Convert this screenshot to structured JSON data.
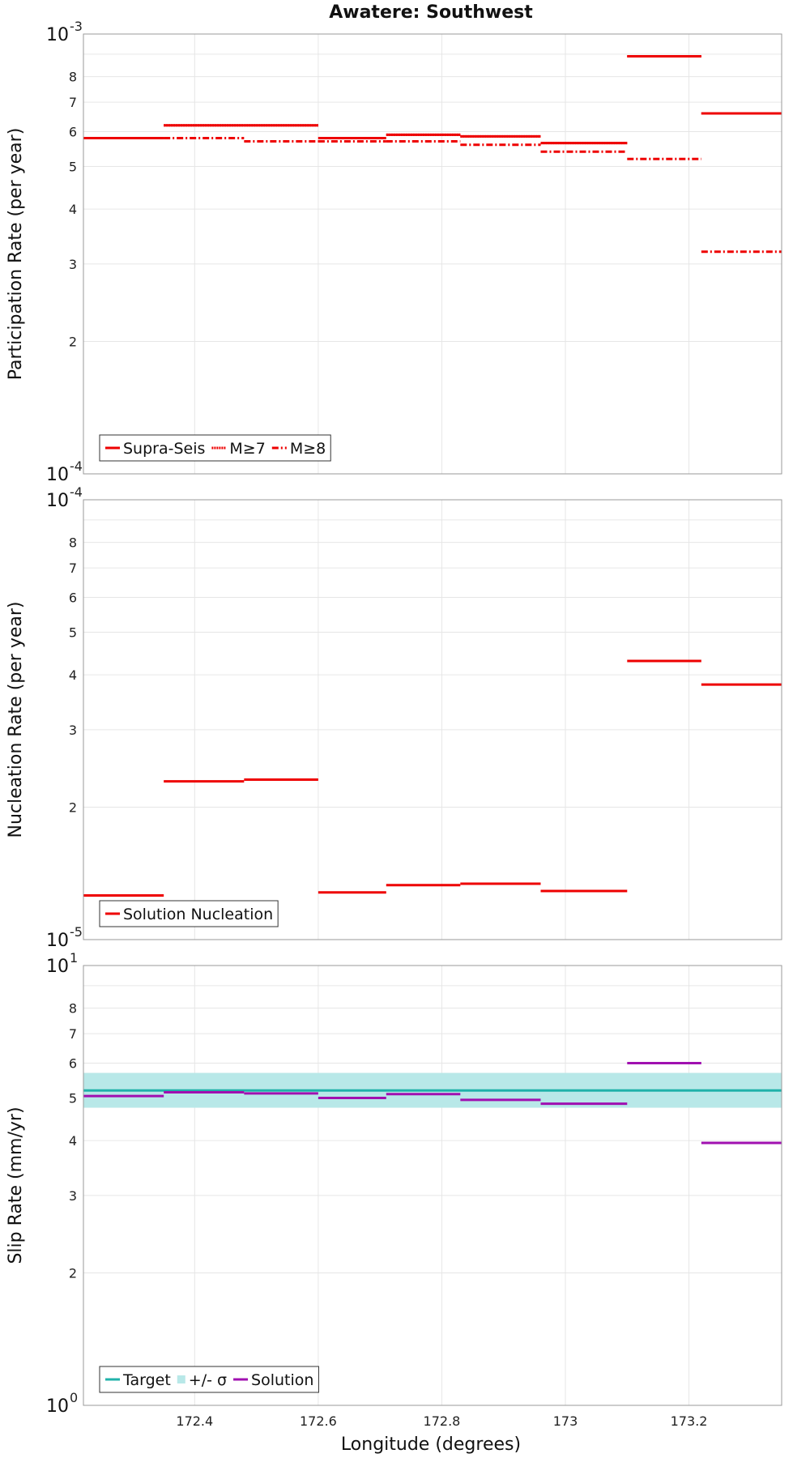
{
  "chart_data": [
    {
      "type": "line",
      "panel": "participation",
      "title": "Awatere: Southwest",
      "ylabel": "Participation Rate (per year)",
      "yscale": "log",
      "ylim": [
        0.0001,
        0.001
      ],
      "xlim": [
        172.22,
        173.35
      ],
      "decade_labels": [
        {
          "base": "10",
          "exp": "-3",
          "value": 0.001
        },
        {
          "base": "10",
          "exp": "-4",
          "value": 0.0001
        }
      ],
      "ytick_labels": [
        {
          "label": "8",
          "value": 0.0008
        },
        {
          "label": "7",
          "value": 0.0007
        },
        {
          "label": "6",
          "value": 0.0006
        },
        {
          "label": "5",
          "value": 0.0005
        },
        {
          "label": "4",
          "value": 0.0004
        },
        {
          "label": "3",
          "value": 0.0003
        },
        {
          "label": "2",
          "value": 0.0002
        }
      ],
      "series": [
        {
          "name": "Supra-Seis",
          "style": "solid",
          "color": "#ee0000",
          "segments": [
            [
              172.22,
              172.35,
              0.00058
            ],
            [
              172.35,
              172.48,
              0.00062
            ],
            [
              172.48,
              172.6,
              0.00062
            ],
            [
              172.6,
              172.71,
              0.00058
            ],
            [
              172.71,
              172.83,
              0.00059
            ],
            [
              172.83,
              172.96,
              0.000585
            ],
            [
              172.96,
              173.1,
              0.000565
            ],
            [
              173.1,
              173.22,
              0.00089
            ],
            [
              173.22,
              173.35,
              0.00066
            ]
          ]
        },
        {
          "name": "M≥7",
          "style": "dotted",
          "color": "#ee0000",
          "segments": [
            [
              172.22,
              172.35,
              0.00058
            ],
            [
              172.35,
              172.48,
              0.00062
            ],
            [
              172.48,
              172.6,
              0.00062
            ],
            [
              172.6,
              172.71,
              0.00058
            ],
            [
              172.71,
              172.83,
              0.00059
            ],
            [
              172.83,
              172.96,
              0.000585
            ],
            [
              172.96,
              173.1,
              0.000565
            ],
            [
              173.1,
              173.22,
              0.00089
            ],
            [
              173.22,
              173.35,
              0.00066
            ]
          ]
        },
        {
          "name": "M≥8",
          "style": "dashdot",
          "color": "#ee0000",
          "segments": [
            [
              172.22,
              172.35,
              0.00058
            ],
            [
              172.35,
              172.48,
              0.00058
            ],
            [
              172.48,
              172.6,
              0.00057
            ],
            [
              172.6,
              172.71,
              0.00057
            ],
            [
              172.71,
              172.83,
              0.00057
            ],
            [
              172.83,
              172.96,
              0.00056
            ],
            [
              172.96,
              173.1,
              0.00054
            ],
            [
              173.1,
              173.22,
              0.00052
            ],
            [
              173.22,
              173.35,
              0.00032
            ]
          ]
        }
      ],
      "legend": {
        "placement": "bottom-left",
        "entries": [
          {
            "label": "Supra-Seis",
            "style": "solid",
            "color": "#ee0000"
          },
          {
            "label": "M≥7",
            "style": "dotted",
            "color": "#ee0000"
          },
          {
            "label": "M≥8",
            "style": "dashdot",
            "color": "#ee0000"
          }
        ]
      }
    },
    {
      "type": "line",
      "panel": "nucleation",
      "ylabel": "Nucleation Rate (per year)",
      "yscale": "log",
      "ylim": [
        1e-05,
        0.0001
      ],
      "xlim": [
        172.22,
        173.35
      ],
      "decade_labels": [
        {
          "base": "10",
          "exp": "-4",
          "value": 0.0001
        },
        {
          "base": "10",
          "exp": "-5",
          "value": 1e-05
        }
      ],
      "ytick_labels": [
        {
          "label": "8",
          "value": 8e-05
        },
        {
          "label": "7",
          "value": 7e-05
        },
        {
          "label": "6",
          "value": 6e-05
        },
        {
          "label": "5",
          "value": 5e-05
        },
        {
          "label": "4",
          "value": 4e-05
        },
        {
          "label": "3",
          "value": 3e-05
        },
        {
          "label": "2",
          "value": 2e-05
        }
      ],
      "series": [
        {
          "name": "Solution Nucleation",
          "style": "solid",
          "color": "#ee0000",
          "segments": [
            [
              172.22,
              172.35,
              1.26e-05
            ],
            [
              172.35,
              172.48,
              2.29e-05
            ],
            [
              172.48,
              172.6,
              2.31e-05
            ],
            [
              172.6,
              172.71,
              1.28e-05
            ],
            [
              172.71,
              172.83,
              1.33e-05
            ],
            [
              172.83,
              172.96,
              1.34e-05
            ],
            [
              172.96,
              173.1,
              1.29e-05
            ],
            [
              173.1,
              173.22,
              4.3e-05
            ],
            [
              173.22,
              173.35,
              3.8e-05
            ]
          ]
        }
      ],
      "legend": {
        "placement": "bottom-left",
        "entries": [
          {
            "label": "Solution Nucleation",
            "style": "solid",
            "color": "#ee0000"
          }
        ]
      }
    },
    {
      "type": "line",
      "panel": "slip",
      "ylabel": "Slip Rate (mm/yr)",
      "xlabel": "Longitude (degrees)",
      "yscale": "log",
      "ylim": [
        1,
        10
      ],
      "xlim": [
        172.22,
        173.35
      ],
      "decade_labels": [
        {
          "base": "10",
          "exp": "1",
          "value": 10
        },
        {
          "base": "10",
          "exp": "0",
          "value": 1
        }
      ],
      "ytick_labels": [
        {
          "label": "8",
          "value": 8
        },
        {
          "label": "7",
          "value": 7
        },
        {
          "label": "6",
          "value": 6
        },
        {
          "label": "5",
          "value": 5
        },
        {
          "label": "4",
          "value": 4
        },
        {
          "label": "3",
          "value": 3
        },
        {
          "label": "2",
          "value": 2
        }
      ],
      "xtick_labels": [
        {
          "label": "172.4",
          "value": 172.4
        },
        {
          "label": "172.6",
          "value": 172.6
        },
        {
          "label": "172.8",
          "value": 172.8
        },
        {
          "label": "173",
          "value": 173.0
        },
        {
          "label": "173.2",
          "value": 173.2
        }
      ],
      "band": {
        "name": "+/- σ",
        "low": 4.75,
        "high": 5.7,
        "color": "#b8e8e8"
      },
      "series": [
        {
          "name": "Target",
          "style": "solid",
          "color": "#20b2aa",
          "segments": [
            [
              172.22,
              173.35,
              5.2
            ]
          ]
        },
        {
          "name": "Solution",
          "style": "solid",
          "color": "#a010b0",
          "segments": [
            [
              172.22,
              172.35,
              5.05
            ],
            [
              172.35,
              172.48,
              5.15
            ],
            [
              172.48,
              172.6,
              5.12
            ],
            [
              172.6,
              172.71,
              5.0
            ],
            [
              172.71,
              172.83,
              5.1
            ],
            [
              172.83,
              172.96,
              4.95
            ],
            [
              172.96,
              173.1,
              4.85
            ],
            [
              173.1,
              173.22,
              6.0
            ],
            [
              173.22,
              173.35,
              3.95
            ]
          ]
        }
      ],
      "legend": {
        "placement": "bottom-left",
        "entries": [
          {
            "label": "Target",
            "style": "solid",
            "color": "#20b2aa"
          },
          {
            "label": "+/- σ",
            "style": "band",
            "color": "#b8e8e8"
          },
          {
            "label": "Solution",
            "style": "solid",
            "color": "#a010b0"
          }
        ]
      }
    }
  ]
}
